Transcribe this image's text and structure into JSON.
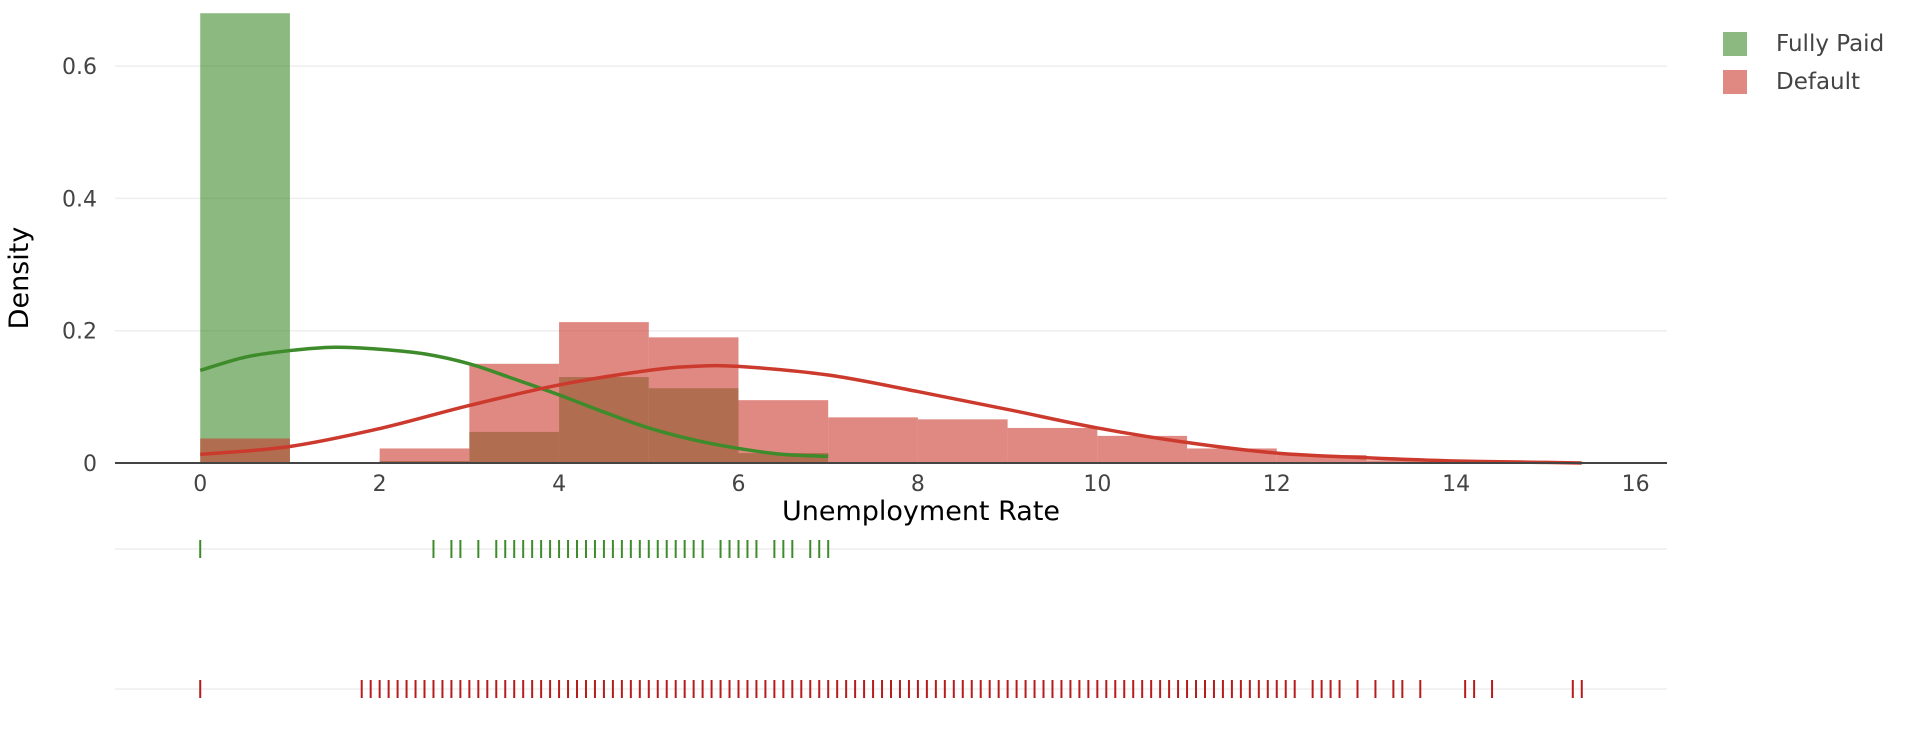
{
  "chart_data": {
    "type": "histogram",
    "xlabel": "Unemployment Rate",
    "ylabel": "Density",
    "xlim": [
      -0.95,
      16.35
    ],
    "ylim": [
      0,
      0.7
    ],
    "x_ticks": [
      0,
      2,
      4,
      6,
      8,
      10,
      12,
      14,
      16
    ],
    "y_ticks": [
      0,
      0.2,
      0.4,
      0.6
    ],
    "y_tick_labels": [
      "0",
      "0.2",
      "0.4",
      "0.6"
    ],
    "grid": true,
    "legend_position": "top-right",
    "series": [
      {
        "name": "Fully Paid",
        "color": "#3d8b2a",
        "bars": [
          {
            "x0": 0,
            "x1": 1,
            "y": 0.68
          },
          {
            "x0": 1,
            "x1": 2,
            "y": 0.0
          },
          {
            "x0": 2,
            "x1": 3,
            "y": 0.003
          },
          {
            "x0": 3,
            "x1": 4,
            "y": 0.047
          },
          {
            "x0": 4,
            "x1": 5,
            "y": 0.13
          },
          {
            "x0": 5,
            "x1": 6,
            "y": 0.113
          },
          {
            "x0": 6,
            "x1": 7,
            "y": 0.015
          }
        ],
        "kde": [
          [
            0,
            0.14
          ],
          [
            0.5,
            0.16
          ],
          [
            1,
            0.17
          ],
          [
            1.5,
            0.175
          ],
          [
            2,
            0.172
          ],
          [
            2.5,
            0.165
          ],
          [
            3,
            0.15
          ],
          [
            3.5,
            0.127
          ],
          [
            4,
            0.103
          ],
          [
            4.5,
            0.077
          ],
          [
            5,
            0.053
          ],
          [
            5.5,
            0.035
          ],
          [
            6,
            0.022
          ],
          [
            6.5,
            0.013
          ],
          [
            7,
            0.01
          ]
        ],
        "rug": [
          0,
          2.6,
          2.8,
          2.9,
          3.1,
          3.3,
          3.4,
          3.5,
          3.6,
          3.7,
          3.8,
          3.9,
          4.0,
          4.1,
          4.2,
          4.3,
          4.4,
          4.5,
          4.6,
          4.7,
          4.8,
          4.9,
          5.0,
          5.1,
          5.2,
          5.3,
          5.4,
          5.5,
          5.6,
          5.8,
          5.9,
          6.0,
          6.1,
          6.2,
          6.4,
          6.5,
          6.6,
          6.8,
          6.9,
          7.0
        ]
      },
      {
        "name": "Default",
        "color": "#cc3a2e",
        "bars": [
          {
            "x0": 0,
            "x1": 1,
            "y": 0.037
          },
          {
            "x0": 2,
            "x1": 3,
            "y": 0.022
          },
          {
            "x0": 3,
            "x1": 4,
            "y": 0.15
          },
          {
            "x0": 4,
            "x1": 5,
            "y": 0.213
          },
          {
            "x0": 5,
            "x1": 6,
            "y": 0.19
          },
          {
            "x0": 6,
            "x1": 7,
            "y": 0.095
          },
          {
            "x0": 7,
            "x1": 8,
            "y": 0.069
          },
          {
            "x0": 8,
            "x1": 9,
            "y": 0.066
          },
          {
            "x0": 9,
            "x1": 10,
            "y": 0.053
          },
          {
            "x0": 10,
            "x1": 11,
            "y": 0.041
          },
          {
            "x0": 11,
            "x1": 12,
            "y": 0.022
          },
          {
            "x0": 12,
            "x1": 13,
            "y": 0.012
          },
          {
            "x0": 13,
            "x1": 14,
            "y": 0.004
          },
          {
            "x0": 14,
            "x1": 15,
            "y": 0.002
          },
          {
            "x0": 15,
            "x1": 15.4,
            "y": 0.001
          }
        ],
        "kde": [
          [
            0,
            0.013
          ],
          [
            1,
            0.025
          ],
          [
            2,
            0.052
          ],
          [
            3,
            0.087
          ],
          [
            4,
            0.118
          ],
          [
            5,
            0.14
          ],
          [
            5.5,
            0.146
          ],
          [
            6,
            0.146
          ],
          [
            7,
            0.133
          ],
          [
            8,
            0.108
          ],
          [
            9,
            0.081
          ],
          [
            10,
            0.053
          ],
          [
            11,
            0.031
          ],
          [
            12,
            0.015
          ],
          [
            13,
            0.008
          ],
          [
            14,
            0.003
          ],
          [
            15,
            0.001
          ],
          [
            15.4,
            0.0
          ]
        ],
        "rug": [
          0,
          1.8,
          1.9,
          2.0,
          2.1,
          2.2,
          2.3,
          2.4,
          2.5,
          2.6,
          2.7,
          2.8,
          2.9,
          3.0,
          3.1,
          3.2,
          3.3,
          3.4,
          3.5,
          3.6,
          3.7,
          3.8,
          3.9,
          4.0,
          4.1,
          4.2,
          4.3,
          4.4,
          4.5,
          4.6,
          4.7,
          4.8,
          4.9,
          5.0,
          5.1,
          5.2,
          5.3,
          5.4,
          5.5,
          5.6,
          5.7,
          5.8,
          5.9,
          6.0,
          6.1,
          6.2,
          6.3,
          6.4,
          6.5,
          6.6,
          6.7,
          6.8,
          6.9,
          7.0,
          7.1,
          7.2,
          7.3,
          7.4,
          7.5,
          7.6,
          7.7,
          7.8,
          7.9,
          8.0,
          8.1,
          8.2,
          8.3,
          8.4,
          8.5,
          8.6,
          8.7,
          8.8,
          8.9,
          9.0,
          9.1,
          9.2,
          9.3,
          9.4,
          9.5,
          9.6,
          9.7,
          9.8,
          9.9,
          10.0,
          10.1,
          10.2,
          10.3,
          10.4,
          10.5,
          10.6,
          10.7,
          10.8,
          10.9,
          11.0,
          11.1,
          11.2,
          11.3,
          11.4,
          11.5,
          11.6,
          11.7,
          11.8,
          11.9,
          12.0,
          12.1,
          12.2,
          12.4,
          12.5,
          12.6,
          12.7,
          12.9,
          13.1,
          13.3,
          13.4,
          13.6,
          14.1,
          14.2,
          14.4,
          15.3,
          15.4
        ]
      }
    ]
  }
}
